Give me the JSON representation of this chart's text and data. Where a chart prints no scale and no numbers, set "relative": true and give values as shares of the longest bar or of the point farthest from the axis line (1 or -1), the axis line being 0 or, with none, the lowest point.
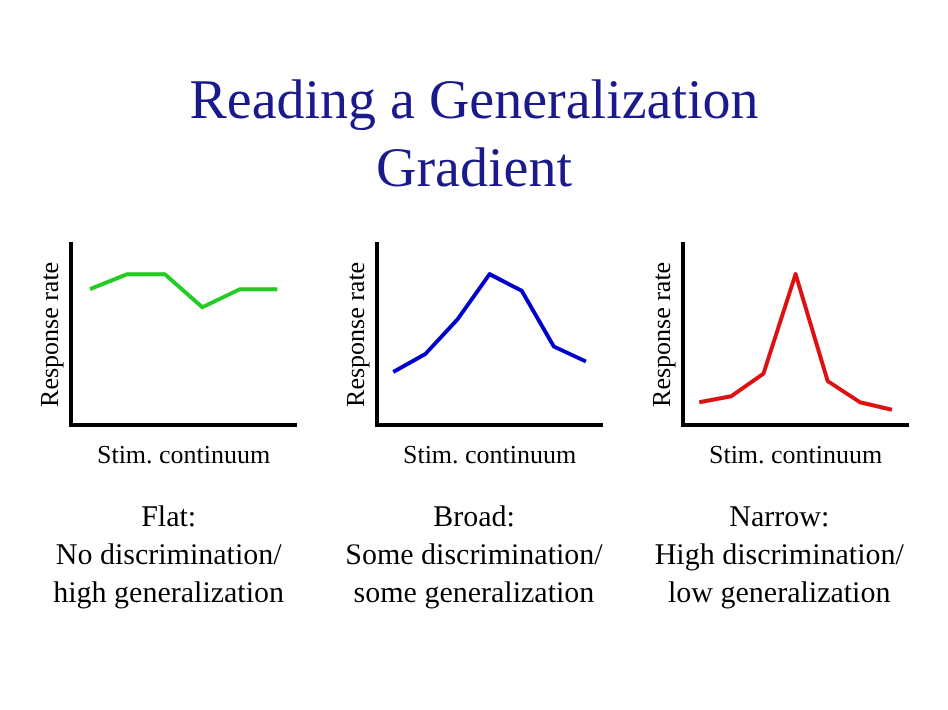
{
  "chart_data": [
    {
      "type": "line",
      "title": "Reading a Generalization Gradient",
      "xlabel": "Stim. continuum",
      "ylabel": "Response rate",
      "relative": true,
      "categories": [
        null,
        null,
        null,
        null,
        null,
        null
      ],
      "series": [
        {
          "color": "#22cc22",
          "values": [
            0.9,
            1,
            1,
            0.78,
            0.9,
            0.9
          ]
        }
      ],
      "annotations": [
        "Flat:",
        "No discrimination/",
        "high generalization"
      ]
    },
    {
      "type": "line",
      "xlabel": "Stim. continuum",
      "ylabel": "Response rate",
      "relative": true,
      "categories": [
        null,
        null,
        null,
        null,
        null,
        null,
        null
      ],
      "series": [
        {
          "color": "#0000cc",
          "values": [
            0.35,
            0.47,
            0.7,
            1,
            0.89,
            0.52,
            0.42
          ]
        }
      ],
      "annotations": [
        "Broad:",
        "Some discrimination/",
        "some generalization"
      ]
    },
    {
      "type": "line",
      "xlabel": "Stim. continuum",
      "ylabel": "Response rate",
      "relative": true,
      "categories": [
        null,
        null,
        null,
        null,
        null,
        null,
        null
      ],
      "series": [
        {
          "color": "#dd1111",
          "values": [
            0.15,
            0.19,
            0.34,
            1,
            0.29,
            0.15,
            0.1
          ]
        }
      ],
      "annotations": [
        "Narrow:",
        "High discrimination/",
        "low generalization"
      ]
    }
  ]
}
